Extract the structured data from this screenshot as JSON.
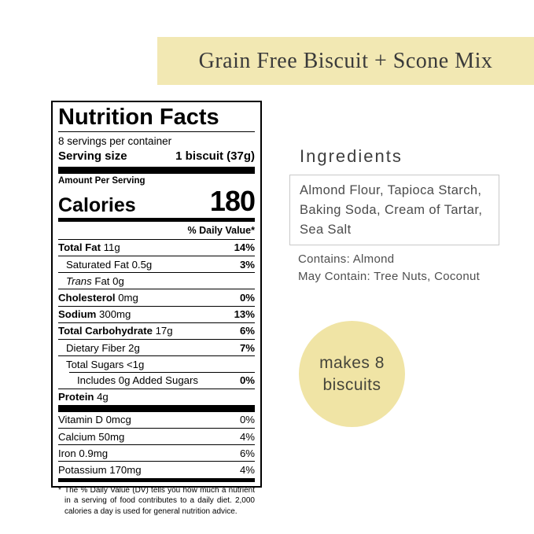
{
  "banner": {
    "title": "Grain Free Biscuit + Scone Mix",
    "bg_color": "#F2E8B3"
  },
  "nutrition_label": {
    "title": "Nutrition Facts",
    "servings_per_container": "8 servings per container",
    "serving_size_label": "Serving size",
    "serving_size_value": "1 biscuit (37g)",
    "amount_per_serving": "Amount Per Serving",
    "calories_label": "Calories",
    "calories_value": "180",
    "daily_value_header": "% Daily Value*",
    "rows": [
      {
        "bold": "Total Fat",
        "text": "11g",
        "dv": "14%",
        "dv_bold": true,
        "indent": 0
      },
      {
        "text": "Saturated Fat 0.5g",
        "dv": "3%",
        "dv_bold": true,
        "indent": 1
      },
      {
        "italic": "Trans",
        "text": "Fat 0g",
        "dv": "",
        "indent": 1
      },
      {
        "bold": "Cholesterol",
        "text": "0mg",
        "dv": "0%",
        "dv_bold": true,
        "indent": 0
      },
      {
        "bold": "Sodium",
        "text": "300mg",
        "dv": "13%",
        "dv_bold": true,
        "indent": 0
      },
      {
        "bold": "Total Carbohydrate",
        "text": "17g",
        "dv": "6%",
        "dv_bold": true,
        "indent": 0
      },
      {
        "text": "Dietary Fiber 2g",
        "dv": "7%",
        "dv_bold": true,
        "indent": 1
      },
      {
        "text": "Total Sugars <1g",
        "dv": "",
        "indent": 1
      },
      {
        "text": "Includes 0g Added Sugars",
        "dv": "0%",
        "dv_bold": true,
        "indent": 2,
        "rule_indent": true
      },
      {
        "bold": "Protein",
        "text": "4g",
        "dv": "",
        "indent": 0
      }
    ],
    "micro_rows": [
      {
        "text": "Vitamin D 0mcg",
        "dv": "0%"
      },
      {
        "text": "Calcium 50mg",
        "dv": "4%"
      },
      {
        "text": "Iron 0.9mg",
        "dv": "6%"
      },
      {
        "text": "Potassium 170mg",
        "dv": "4%"
      }
    ],
    "footnote_star": "*",
    "footnote": "The % Daily Value (DV) tells you how much a nutrient in a serving of food contributes to a daily diet. 2,000 calories a day is used for general nutrition advice."
  },
  "ingredients": {
    "heading": "Ingredients",
    "list": "Almond Flour, Tapioca Starch, Baking Soda, Cream of Tartar, Sea Salt",
    "contains": "Contains: Almond",
    "may_contain": "May Contain: Tree Nuts, Coconut"
  },
  "badge": {
    "line1": "makes 8",
    "line2": "biscuits",
    "bg_color": "#F0E4A5"
  }
}
